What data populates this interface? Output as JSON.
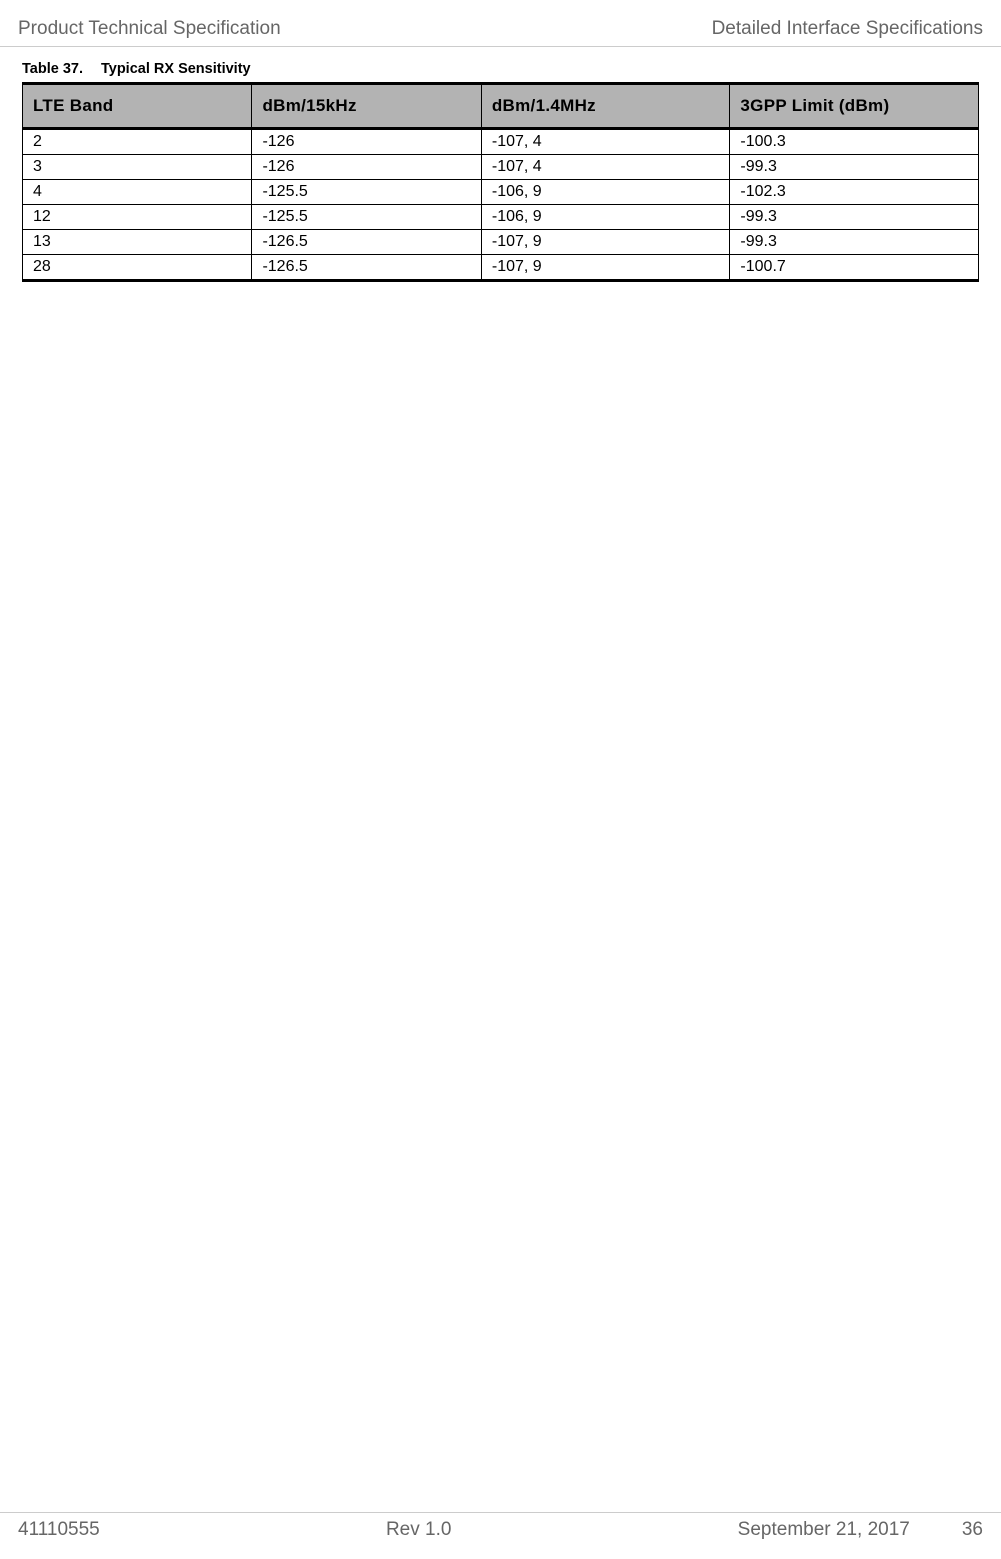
{
  "header": {
    "left": "Product Technical Specification",
    "right": "Detailed Interface Specifications"
  },
  "table_caption": {
    "number": "Table 37.",
    "title": "Typical RX Sensitivity"
  },
  "table": {
    "columns": [
      "LTE Band",
      "dBm/15kHz",
      "dBm/1.4MHz",
      "3GPP Limit (dBm)"
    ],
    "rows": [
      [
        "2",
        "-126",
        "-107, 4",
        "-100.3"
      ],
      [
        "3",
        "-126",
        "-107, 4",
        "-99.3"
      ],
      [
        "4",
        "-125.5",
        "-106, 9",
        "-102.3"
      ],
      [
        "12",
        "-125.5",
        "-106, 9",
        "-99.3"
      ],
      [
        "13",
        "-126.5",
        "-107, 9",
        "-99.3"
      ],
      [
        "28",
        "-126.5",
        "-107, 9",
        "-100.7"
      ]
    ]
  },
  "footer": {
    "doc_id": "41110555",
    "revision": "Rev 1.0",
    "date": "September 21, 2017",
    "page": "36"
  }
}
